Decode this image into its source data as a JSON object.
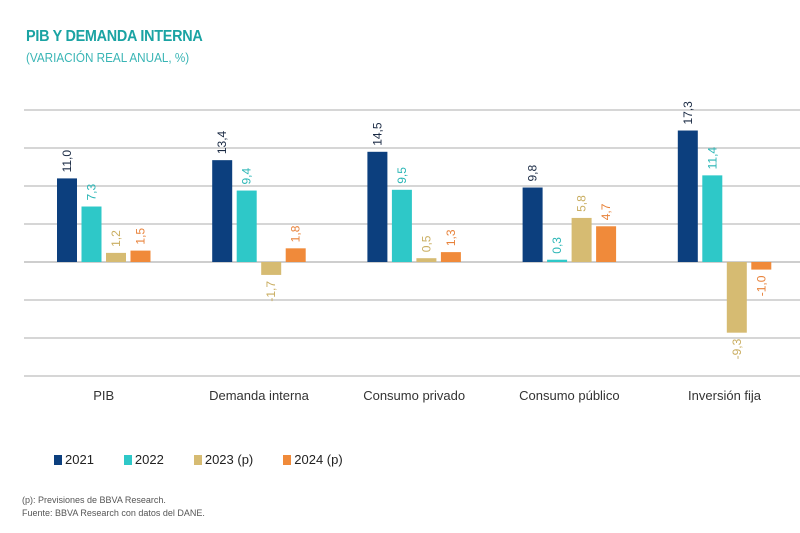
{
  "chart_data": {
    "type": "bar",
    "title": "PIB Y DEMANDA INTERNA",
    "subtitle": "(VARIACIÓN REAL ANUAL, %)",
    "xlabel": "",
    "ylabel": "",
    "ylim": [
      -15,
      20
    ],
    "grid": true,
    "gridline_values": [
      20,
      15,
      10,
      5,
      0,
      -5,
      -10,
      -15
    ],
    "legend_position": "bottom-left",
    "categories": [
      "PIB",
      "Demanda interna",
      "Consumo privado",
      "Consumo público",
      "Inversión fija"
    ],
    "series": [
      {
        "name": "2021",
        "color": "#0c3f7e",
        "label_color": "#1a2a44",
        "values": [
          11.0,
          13.4,
          14.5,
          9.8,
          17.3
        ],
        "labels": [
          "11,0",
          "13,4",
          "14,5",
          "9,8",
          "17,3"
        ]
      },
      {
        "name": "2022",
        "color": "#2ec8c8",
        "label_color": "#2bb6b6",
        "values": [
          7.3,
          9.4,
          9.5,
          0.3,
          11.4
        ],
        "labels": [
          "7,3",
          "9,4",
          "9,5",
          "0,3",
          "11,4"
        ]
      },
      {
        "name": "2023 (p)",
        "color": "#d6bb72",
        "label_color": "#c9ad60",
        "values": [
          1.2,
          -1.7,
          0.5,
          5.8,
          -9.3
        ],
        "labels": [
          "1,2",
          "-1,7",
          "0,5",
          "5,8",
          "-9,3"
        ]
      },
      {
        "name": "2024 (p)",
        "color": "#f08a3a",
        "label_color": "#e8823a",
        "values": [
          1.5,
          1.8,
          1.3,
          4.7,
          -1.0
        ],
        "labels": [
          "1,5",
          "1,8",
          "1,3",
          "4,7",
          "-1,0"
        ]
      }
    ]
  },
  "footnotes": [
    "(p): Previsiones de BBVA Research.",
    "Fuente: BBVA Research con datos del DANE."
  ]
}
